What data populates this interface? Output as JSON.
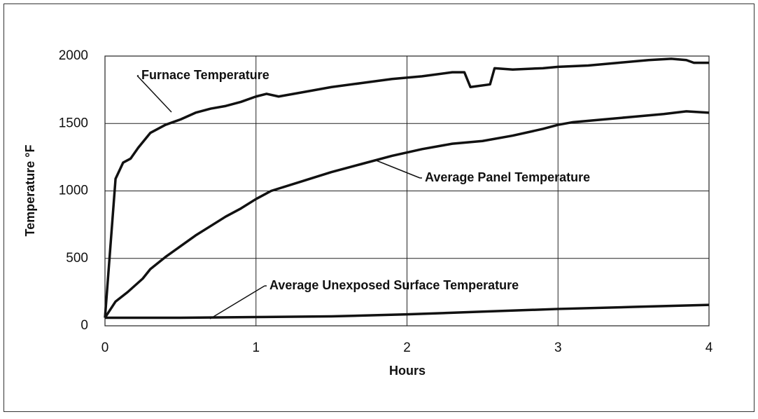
{
  "chart_data": {
    "type": "line",
    "xlabel": "Hours",
    "ylabel": "Temperature °F",
    "xlim": [
      0,
      4
    ],
    "xticks": [
      0,
      1,
      2,
      3,
      4
    ],
    "ylim": [
      0,
      2000
    ],
    "yticks": [
      0,
      500,
      1000,
      1500,
      2000
    ],
    "grid": true,
    "series": [
      {
        "name": "Furnace Temperature",
        "color": "#111111",
        "x": [
          0,
          0.07,
          0.12,
          0.17,
          0.22,
          0.3,
          0.4,
          0.5,
          0.6,
          0.7,
          0.8,
          0.9,
          1.0,
          1.07,
          1.15,
          1.3,
          1.5,
          1.7,
          1.9,
          2.1,
          2.3,
          2.38,
          2.42,
          2.55,
          2.58,
          2.7,
          2.9,
          3.0,
          3.2,
          3.4,
          3.6,
          3.75,
          3.85,
          3.9,
          4.0
        ],
        "values": [
          60,
          1090,
          1210,
          1240,
          1320,
          1430,
          1490,
          1530,
          1580,
          1610,
          1630,
          1660,
          1700,
          1720,
          1700,
          1730,
          1770,
          1800,
          1830,
          1850,
          1880,
          1880,
          1770,
          1790,
          1910,
          1900,
          1910,
          1920,
          1930,
          1950,
          1970,
          1980,
          1970,
          1950,
          1950
        ]
      },
      {
        "name": "Average Panel Temperature",
        "color": "#111111",
        "x": [
          0,
          0.07,
          0.15,
          0.25,
          0.3,
          0.4,
          0.5,
          0.6,
          0.7,
          0.8,
          0.9,
          1.0,
          1.1,
          1.3,
          1.5,
          1.7,
          1.9,
          2.1,
          2.3,
          2.5,
          2.7,
          2.9,
          3.0,
          3.1,
          3.3,
          3.5,
          3.7,
          3.85,
          4.0
        ],
        "values": [
          60,
          180,
          250,
          350,
          420,
          510,
          590,
          670,
          740,
          810,
          870,
          940,
          1000,
          1070,
          1140,
          1200,
          1260,
          1310,
          1350,
          1370,
          1410,
          1460,
          1490,
          1510,
          1530,
          1550,
          1570,
          1590,
          1580
        ]
      },
      {
        "name": "Average Unexposed Surface Temperature",
        "color": "#111111",
        "x": [
          0,
          0.5,
          1.0,
          1.5,
          2.0,
          2.5,
          3.0,
          3.5,
          4.0
        ],
        "values": [
          60,
          60,
          65,
          70,
          85,
          105,
          125,
          140,
          155
        ]
      }
    ]
  }
}
